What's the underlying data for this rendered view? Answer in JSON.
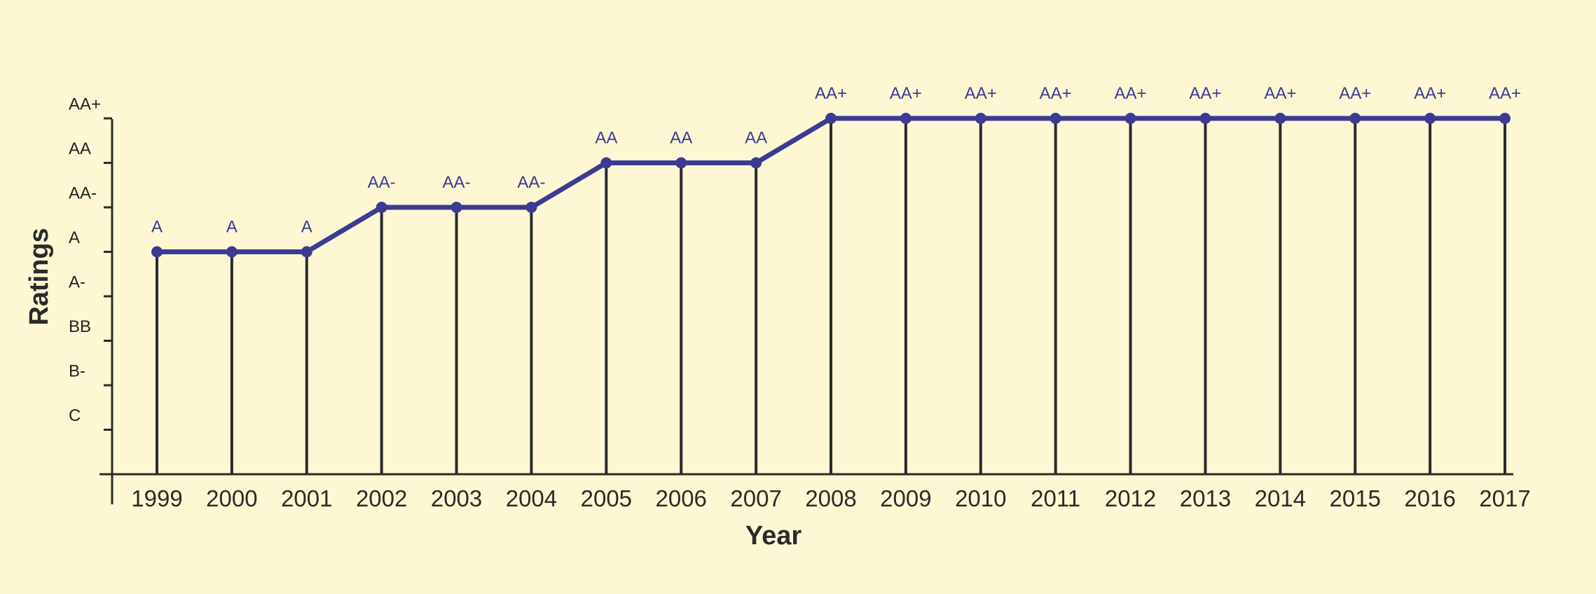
{
  "chart_data": {
    "type": "line",
    "xlabel": "Year",
    "ylabel": "Ratings",
    "y_categories": [
      "C",
      "B-",
      "BB",
      "A-",
      "A",
      "AA-",
      "AA",
      "AA+"
    ],
    "x": [
      "1999",
      "2000",
      "2001",
      "2002",
      "2003",
      "2004",
      "2005",
      "2006",
      "2007",
      "2008",
      "2009",
      "2010",
      "2011",
      "2012",
      "2013",
      "2014",
      "2015",
      "2016",
      "2017"
    ],
    "series": [
      {
        "values": [
          "A",
          "A",
          "A",
          "AA-",
          "AA-",
          "AA-",
          "AA",
          "AA",
          "AA",
          "AA+",
          "AA+",
          "AA+",
          "AA+",
          "AA+",
          "AA+",
          "AA+",
          "AA+",
          "AA+",
          "AA+"
        ]
      }
    ],
    "data_labels": [
      "A",
      "A",
      "A",
      "AA-",
      "AA-",
      "AA-",
      "AA",
      "AA",
      "AA",
      "AA+",
      "AA+",
      "AA+",
      "AA+",
      "AA+",
      "AA+",
      "AA+",
      "AA+",
      "AA+",
      "AA+"
    ],
    "drop_lines": true,
    "grid": false,
    "legend": "none",
    "colors": {
      "background": "#fdf8d3",
      "series": "#3b3b93",
      "axis": "#2b2b2b",
      "drop_line": "#2b2b2b"
    }
  }
}
